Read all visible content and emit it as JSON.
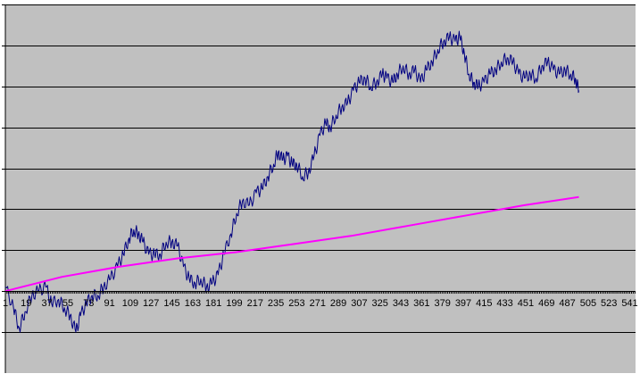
{
  "chart_data": {
    "type": "line",
    "title": "",
    "xlabel": "",
    "ylabel": "",
    "x_tick_labels": [
      "1",
      "19",
      "37",
      "55",
      "73",
      "91",
      "109",
      "127",
      "145",
      "163",
      "181",
      "199",
      "217",
      "235",
      "253",
      "271",
      "289",
      "307",
      "325",
      "343",
      "361",
      "379",
      "397",
      "415",
      "433",
      "451",
      "469",
      "487",
      "505",
      "523",
      "541"
    ],
    "x_tick_values": [
      1,
      19,
      37,
      55,
      73,
      91,
      109,
      127,
      145,
      163,
      181,
      199,
      217,
      235,
      253,
      271,
      289,
      307,
      325,
      343,
      361,
      379,
      397,
      415,
      433,
      451,
      469,
      487,
      505,
      523,
      541
    ],
    "xlim": [
      1,
      546
    ],
    "ylim": [
      -2,
      7
    ],
    "y_gridlines": [
      -1,
      0,
      1,
      2,
      3,
      4,
      5,
      6,
      7
    ],
    "y_tick_labels_shown": false,
    "grid": true,
    "legend": "none",
    "colors": {
      "plot_area": "#C0C0C0",
      "gridline": "#000000",
      "navy_series": "#000080",
      "magenta_series": "#FF00FF"
    },
    "series": [
      {
        "color": "#000080",
        "style": "jagged",
        "points": [
          [
            1,
            0.1
          ],
          [
            8,
            -0.4
          ],
          [
            13,
            -0.9
          ],
          [
            18,
            -0.5
          ],
          [
            24,
            -0.1
          ],
          [
            30,
            0.0
          ],
          [
            36,
            0.1
          ],
          [
            41,
            -0.3
          ],
          [
            47,
            -0.2
          ],
          [
            52,
            -0.4
          ],
          [
            57,
            -0.6
          ],
          [
            62,
            -1.0
          ],
          [
            66,
            -0.6
          ],
          [
            71,
            -0.3
          ],
          [
            76,
            -0.1
          ],
          [
            81,
            -0.1
          ],
          [
            86,
            0.1
          ],
          [
            92,
            0.3
          ],
          [
            98,
            0.6
          ],
          [
            103,
            0.9
          ],
          [
            108,
            1.3
          ],
          [
            112,
            1.5
          ],
          [
            116,
            1.4
          ],
          [
            120,
            1.2
          ],
          [
            125,
            0.9
          ],
          [
            130,
            0.9
          ],
          [
            135,
            0.9
          ],
          [
            140,
            1.2
          ],
          [
            145,
            1.2
          ],
          [
            150,
            1.1
          ],
          [
            155,
            0.6
          ],
          [
            160,
            0.3
          ],
          [
            165,
            0.2
          ],
          [
            170,
            0.3
          ],
          [
            175,
            0.1
          ],
          [
            180,
            0.2
          ],
          [
            185,
            0.4
          ],
          [
            190,
            0.9
          ],
          [
            196,
            1.4
          ],
          [
            201,
            1.9
          ],
          [
            206,
            2.2
          ],
          [
            212,
            2.1
          ],
          [
            218,
            2.4
          ],
          [
            223,
            2.5
          ],
          [
            228,
            2.8
          ],
          [
            233,
            3.1
          ],
          [
            237,
            3.4
          ],
          [
            241,
            3.2
          ],
          [
            245,
            3.3
          ],
          [
            249,
            3.1
          ],
          [
            253,
            3.1
          ],
          [
            258,
            2.8
          ],
          [
            263,
            2.9
          ],
          [
            268,
            3.3
          ],
          [
            273,
            3.8
          ],
          [
            278,
            4.1
          ],
          [
            282,
            4.0
          ],
          [
            287,
            4.3
          ],
          [
            292,
            4.5
          ],
          [
            297,
            4.6
          ],
          [
            302,
            4.9
          ],
          [
            307,
            5.1
          ],
          [
            312,
            5.2
          ],
          [
            317,
            5.0
          ],
          [
            322,
            5.1
          ],
          [
            327,
            5.3
          ],
          [
            331,
            5.2
          ],
          [
            336,
            5.1
          ],
          [
            340,
            5.3
          ],
          [
            345,
            5.5
          ],
          [
            350,
            5.3
          ],
          [
            355,
            5.4
          ],
          [
            360,
            5.1
          ],
          [
            365,
            5.4
          ],
          [
            370,
            5.6
          ],
          [
            375,
            5.9
          ],
          [
            380,
            6.1
          ],
          [
            385,
            6.2
          ],
          [
            390,
            6.1
          ],
          [
            394,
            6.2
          ],
          [
            398,
            5.8
          ],
          [
            402,
            5.3
          ],
          [
            406,
            5.1
          ],
          [
            410,
            5.0
          ],
          [
            415,
            5.1
          ],
          [
            420,
            5.3
          ],
          [
            425,
            5.4
          ],
          [
            430,
            5.6
          ],
          [
            435,
            5.7
          ],
          [
            440,
            5.6
          ],
          [
            445,
            5.3
          ],
          [
            450,
            5.2
          ],
          [
            455,
            5.3
          ],
          [
            460,
            5.2
          ],
          [
            465,
            5.5
          ],
          [
            470,
            5.6
          ],
          [
            475,
            5.4
          ],
          [
            480,
            5.3
          ],
          [
            485,
            5.4
          ],
          [
            490,
            5.3
          ],
          [
            494,
            5.2
          ],
          [
            497,
            4.9
          ]
        ]
      },
      {
        "color": "#FF00FF",
        "style": "smooth",
        "points": [
          [
            1,
            0.0
          ],
          [
            50,
            0.35
          ],
          [
            100,
            0.6
          ],
          [
            150,
            0.8
          ],
          [
            200,
            0.95
          ],
          [
            250,
            1.15
          ],
          [
            300,
            1.35
          ],
          [
            350,
            1.6
          ],
          [
            400,
            1.85
          ],
          [
            450,
            2.1
          ],
          [
            497,
            2.3
          ]
        ]
      }
    ]
  }
}
